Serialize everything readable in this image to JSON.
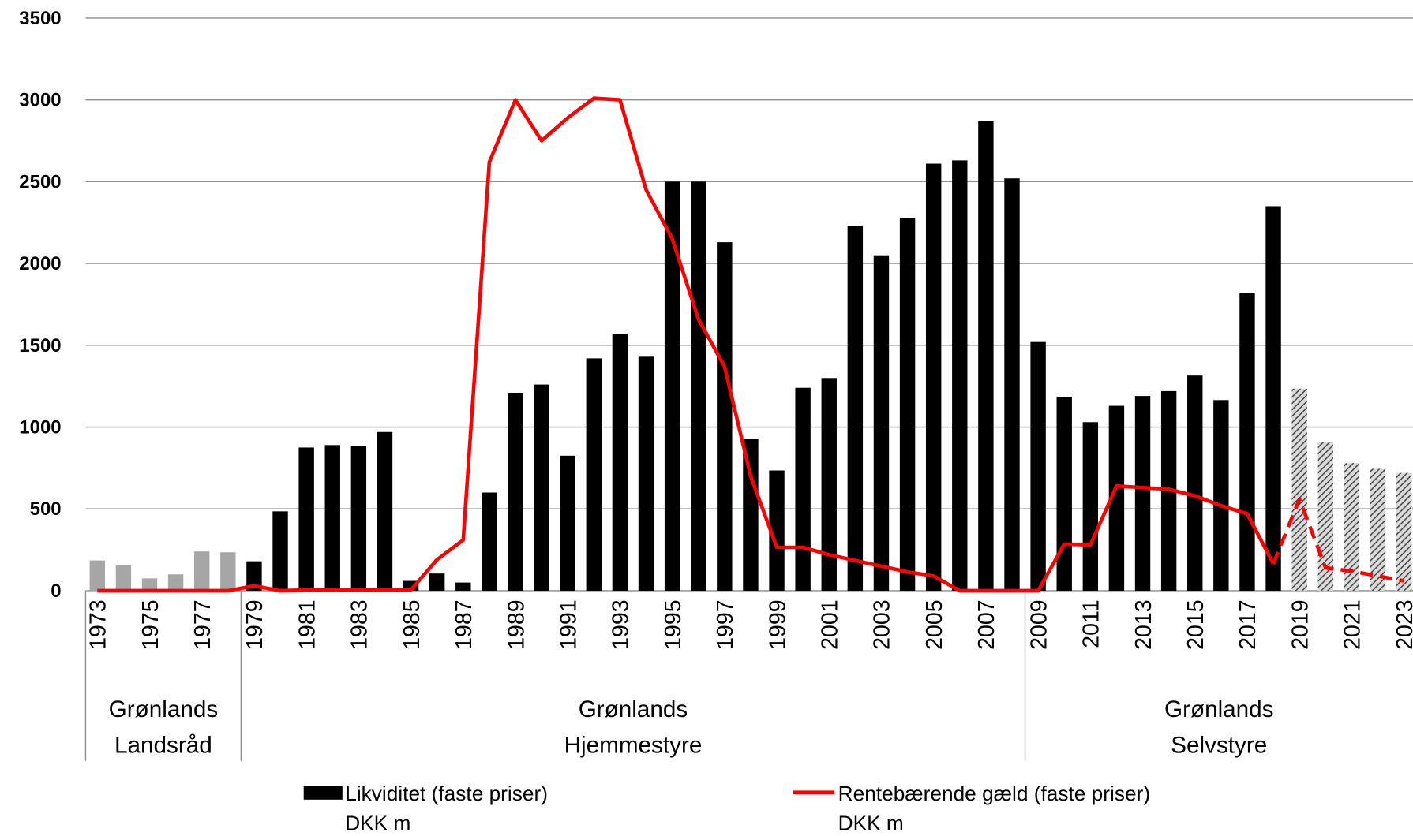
{
  "chart_data": {
    "type": "bar_line",
    "categories": [
      "1973",
      null,
      "1975",
      null,
      "1977",
      null,
      "1979",
      null,
      "1981",
      null,
      "1983",
      null,
      "1985",
      null,
      "1987",
      null,
      "1989",
      null,
      "1991",
      null,
      "1993",
      null,
      "1995",
      null,
      "1997",
      null,
      "1999",
      null,
      "2001",
      null,
      "2003",
      null,
      "2005",
      null,
      "2007",
      null,
      "2009",
      null,
      "2011",
      null,
      "2013",
      null,
      "2015",
      null,
      "2017",
      null,
      "2019",
      null,
      "2021",
      null,
      "2023"
    ],
    "series": [
      {
        "name": [
          "Likviditet (faste priser)",
          "DKK m"
        ],
        "kind": "bar",
        "color": "#000000",
        "values": [
          185,
          155,
          75,
          100,
          240,
          235,
          180,
          485,
          875,
          890,
          885,
          970,
          60,
          105,
          50,
          600,
          1210,
          1260,
          825,
          1420,
          1570,
          1430,
          2500,
          2500,
          2130,
          930,
          735,
          1240,
          1300,
          2230,
          2050,
          2280,
          2610,
          2630,
          2870,
          2520,
          1520,
          1185,
          1030,
          1130,
          1190,
          1220,
          1315,
          1165,
          1820,
          2350,
          1235,
          910,
          780,
          745,
          720
        ],
        "fills": [
          "#a6a6a6",
          "#a6a6a6",
          "#a6a6a6",
          "#a6a6a6",
          "#a6a6a6",
          "#a6a6a6",
          "#000000",
          "#000000",
          "#000000",
          "#000000",
          "#000000",
          "#000000",
          "#000000",
          "#000000",
          "#000000",
          "#000000",
          "#000000",
          "#000000",
          "#000000",
          "#000000",
          "#000000",
          "#000000",
          "#000000",
          "#000000",
          "#000000",
          "#000000",
          "#000000",
          "#000000",
          "#000000",
          "#000000",
          "#000000",
          "#000000",
          "#000000",
          "#000000",
          "#000000",
          "#000000",
          "#000000",
          "#000000",
          "#000000",
          "#000000",
          "#000000",
          "#000000",
          "#000000",
          "#000000",
          "#000000",
          "#000000",
          "hatch",
          "hatch",
          "hatch",
          "hatch",
          "hatch"
        ]
      },
      {
        "name": [
          "Rentebærende gæld (faste priser)",
          "DKK m"
        ],
        "kind": "line",
        "color": "#ff0000",
        "values": [
          0,
          0,
          0,
          0,
          0,
          0,
          30,
          0,
          5,
          5,
          5,
          5,
          5,
          190,
          310,
          2620,
          3000,
          2750,
          2890,
          3010,
          3000,
          2450,
          2150,
          1660,
          1370,
          700,
          265,
          265,
          220,
          185,
          150,
          115,
          90,
          0,
          0,
          0,
          0,
          285,
          280,
          640,
          630,
          620,
          580,
          520,
          470,
          165,
          560,
          140,
          120,
          90,
          60
        ],
        "dashed": [
          false,
          false,
          false,
          false,
          false,
          false,
          false,
          false,
          false,
          false,
          false,
          false,
          false,
          false,
          false,
          false,
          false,
          false,
          false,
          false,
          false,
          false,
          false,
          false,
          false,
          false,
          false,
          false,
          false,
          false,
          false,
          false,
          false,
          false,
          false,
          false,
          false,
          false,
          false,
          false,
          false,
          false,
          false,
          false,
          false,
          false,
          true,
          true,
          true,
          true,
          true
        ]
      }
    ],
    "groups": [
      {
        "label": [
          "Grønlands",
          "Landsråd"
        ],
        "count": 6
      },
      {
        "label": [
          "Grønlands",
          "Hjemmestyre"
        ],
        "count": 30
      },
      {
        "label": [
          "Grønlands",
          "Selvstyre"
        ],
        "count": 15
      }
    ],
    "ylim": [
      0,
      3500
    ],
    "yticks": [
      0,
      500,
      1000,
      1500,
      2000,
      2500,
      3000,
      3500
    ],
    "grid": true
  }
}
